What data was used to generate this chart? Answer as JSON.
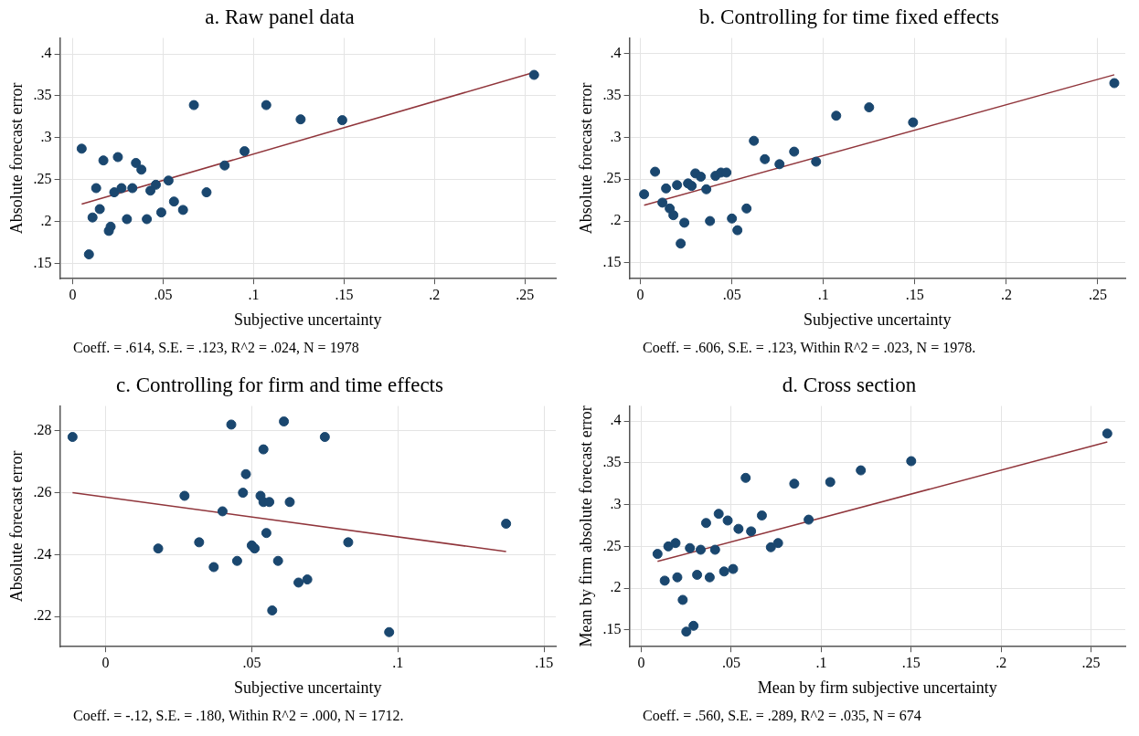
{
  "chart_data": [
    {
      "type": "scatter",
      "title": "a. Raw panel data",
      "xlabel": "Subjective uncertainty",
      "ylabel": "Absolute forecast error",
      "annotations": [
        "Coeff. = .614, S.E. = .123, R^2 = .024, N = 1978"
      ],
      "xlim": [
        -0.007,
        0.267
      ],
      "ylim": [
        0.132,
        0.419
      ],
      "xticks": [
        {
          "value": 0,
          "label": "0"
        },
        {
          "value": 0.05,
          "label": ".05"
        },
        {
          "value": 0.1,
          "label": ".1"
        },
        {
          "value": 0.15,
          "label": ".15"
        },
        {
          "value": 0.2,
          "label": ".2"
        },
        {
          "value": 0.25,
          "label": ".25"
        }
      ],
      "yticks": [
        {
          "value": 0.15,
          "label": ".15"
        },
        {
          "value": 0.2,
          "label": ".2"
        },
        {
          "value": 0.25,
          "label": ".25"
        },
        {
          "value": 0.3,
          "label": ".3"
        },
        {
          "value": 0.35,
          "label": ".35"
        },
        {
          "value": 0.4,
          "label": ".4"
        }
      ],
      "grid": true,
      "series": [
        {
          "type": "scatter",
          "marker": "circle",
          "color": "#1a476f",
          "x": [
            0.005,
            0.009,
            0.011,
            0.013,
            0.015,
            0.017,
            0.02,
            0.021,
            0.023,
            0.025,
            0.027,
            0.03,
            0.033,
            0.035,
            0.038,
            0.041,
            0.043,
            0.046,
            0.049,
            0.053,
            0.056,
            0.061,
            0.067,
            0.074,
            0.084,
            0.095,
            0.107,
            0.126,
            0.149,
            0.255
          ],
          "values": [
            0.287,
            0.161,
            0.205,
            0.24,
            0.215,
            0.273,
            0.189,
            0.194,
            0.235,
            0.277,
            0.24,
            0.203,
            0.24,
            0.27,
            0.262,
            0.203,
            0.237,
            0.244,
            0.211,
            0.249,
            0.224,
            0.214,
            0.339,
            0.235,
            0.267,
            0.284,
            0.339,
            0.322,
            0.321,
            0.375
          ]
        },
        {
          "type": "line",
          "color": "#90353b",
          "x": [
            0.005,
            0.255
          ],
          "values": [
            0.221,
            0.378
          ]
        }
      ]
    },
    {
      "type": "scatter",
      "title": "b. Controlling for time fixed effects",
      "xlabel": "Subjective uncertainty",
      "ylabel": "Absolute forecast error",
      "annotations": [
        "Coeff. = .606, S.E. = .123, Within R^2 = .023, N = 1978."
      ],
      "xlim": [
        -0.006,
        0.265
      ],
      "ylim": [
        0.131,
        0.419
      ],
      "xticks": [
        {
          "value": 0,
          "label": "0"
        },
        {
          "value": 0.05,
          "label": ".05"
        },
        {
          "value": 0.1,
          "label": ".1"
        },
        {
          "value": 0.15,
          "label": ".15"
        },
        {
          "value": 0.2,
          "label": ".2"
        },
        {
          "value": 0.25,
          "label": ".25"
        }
      ],
      "yticks": [
        {
          "value": 0.15,
          "label": ".15"
        },
        {
          "value": 0.2,
          "label": ".2"
        },
        {
          "value": 0.25,
          "label": ".25"
        },
        {
          "value": 0.3,
          "label": ".3"
        },
        {
          "value": 0.35,
          "label": ".35"
        },
        {
          "value": 0.4,
          "label": ".4"
        }
      ],
      "grid": true,
      "series": [
        {
          "type": "scatter",
          "marker": "circle",
          "color": "#1a476f",
          "x": [
            0.002,
            0.008,
            0.012,
            0.014,
            0.016,
            0.018,
            0.02,
            0.022,
            0.024,
            0.026,
            0.028,
            0.03,
            0.033,
            0.036,
            0.038,
            0.041,
            0.044,
            0.047,
            0.05,
            0.053,
            0.058,
            0.062,
            0.068,
            0.076,
            0.084,
            0.096,
            0.107,
            0.125,
            0.149,
            0.259
          ],
          "values": [
            0.232,
            0.259,
            0.222,
            0.239,
            0.215,
            0.207,
            0.243,
            0.173,
            0.198,
            0.245,
            0.242,
            0.257,
            0.253,
            0.238,
            0.2,
            0.254,
            0.258,
            0.258,
            0.203,
            0.189,
            0.215,
            0.296,
            0.274,
            0.268,
            0.283,
            0.271,
            0.326,
            0.336,
            0.318,
            0.365
          ]
        },
        {
          "type": "line",
          "color": "#90353b",
          "x": [
            0.002,
            0.259
          ],
          "values": [
            0.219,
            0.375
          ]
        }
      ]
    },
    {
      "type": "scatter",
      "title": "c. Controlling for firm and time effects",
      "xlabel": "Subjective uncertainty",
      "ylabel": "Absolute forecast error",
      "annotations": [
        "Coeff. = -.12, S.E. = .180, Within R^2 = .000, N = 1712."
      ],
      "xlim": [
        -0.0156,
        0.154
      ],
      "ylim": [
        0.2103,
        0.288
      ],
      "xticks": [
        {
          "value": 0,
          "label": "0"
        },
        {
          "value": 0.05,
          "label": ".05"
        },
        {
          "value": 0.1,
          "label": ".1"
        },
        {
          "value": 0.15,
          "label": ".15"
        }
      ],
      "yticks": [
        {
          "value": 0.22,
          "label": ".22"
        },
        {
          "value": 0.24,
          "label": ".24"
        },
        {
          "value": 0.26,
          "label": ".26"
        },
        {
          "value": 0.28,
          "label": ".28"
        }
      ],
      "grid": true,
      "series": [
        {
          "type": "scatter",
          "marker": "circle",
          "color": "#1a476f",
          "x": [
            -0.0113,
            0.018,
            0.027,
            0.032,
            0.037,
            0.04,
            0.043,
            0.045,
            0.047,
            0.048,
            0.05,
            0.051,
            0.053,
            0.054,
            0.054,
            0.055,
            0.056,
            0.057,
            0.059,
            0.061,
            0.063,
            0.066,
            0.069,
            0.075,
            0.083,
            0.097,
            0.137
          ],
          "values": [
            0.278,
            0.242,
            0.259,
            0.244,
            0.236,
            0.254,
            0.282,
            0.238,
            0.26,
            0.266,
            0.243,
            0.242,
            0.259,
            0.257,
            0.274,
            0.247,
            0.257,
            0.222,
            0.238,
            0.283,
            0.257,
            0.231,
            0.232,
            0.278,
            0.244,
            0.215,
            0.25
          ]
        },
        {
          "type": "line",
          "color": "#90353b",
          "x": [
            -0.0113,
            0.137
          ],
          "values": [
            0.26,
            0.241
          ]
        }
      ]
    },
    {
      "type": "scatter",
      "title": "d. Cross section",
      "xlabel": "Mean by firm subjective uncertainty",
      "ylabel": "Mean by firm absolute forecast error",
      "annotations": [
        "Coeff. = .560, S.E. = .289, R^2 = .035, N = 674"
      ],
      "xlim": [
        -0.0066,
        0.269
      ],
      "ylim": [
        0.13,
        0.418
      ],
      "xticks": [
        {
          "value": 0,
          "label": "0"
        },
        {
          "value": 0.05,
          "label": ".05"
        },
        {
          "value": 0.1,
          "label": ".1"
        },
        {
          "value": 0.15,
          "label": ".15"
        },
        {
          "value": 0.2,
          "label": ".2"
        },
        {
          "value": 0.25,
          "label": ".25"
        }
      ],
      "yticks": [
        {
          "value": 0.15,
          "label": ".15"
        },
        {
          "value": 0.2,
          "label": ".2"
        },
        {
          "value": 0.25,
          "label": ".25"
        },
        {
          "value": 0.3,
          "label": ".3"
        },
        {
          "value": 0.35,
          "label": ".35"
        },
        {
          "value": 0.4,
          "label": ".4"
        }
      ],
      "grid": true,
      "series": [
        {
          "type": "scatter",
          "marker": "circle",
          "color": "#1a476f",
          "x": [
            0.009,
            0.013,
            0.015,
            0.019,
            0.02,
            0.023,
            0.025,
            0.027,
            0.029,
            0.031,
            0.033,
            0.036,
            0.038,
            0.041,
            0.043,
            0.046,
            0.048,
            0.051,
            0.054,
            0.058,
            0.061,
            0.067,
            0.072,
            0.076,
            0.085,
            0.093,
            0.105,
            0.122,
            0.15,
            0.259
          ],
          "values": [
            0.241,
            0.209,
            0.25,
            0.254,
            0.213,
            0.186,
            0.148,
            0.248,
            0.155,
            0.216,
            0.246,
            0.278,
            0.213,
            0.246,
            0.289,
            0.22,
            0.281,
            0.223,
            0.271,
            0.332,
            0.268,
            0.287,
            0.249,
            0.254,
            0.325,
            0.282,
            0.327,
            0.341,
            0.352,
            0.385
          ]
        },
        {
          "type": "line",
          "color": "#90353b",
          "x": [
            0.009,
            0.259
          ],
          "values": [
            0.232,
            0.375
          ]
        }
      ]
    }
  ]
}
